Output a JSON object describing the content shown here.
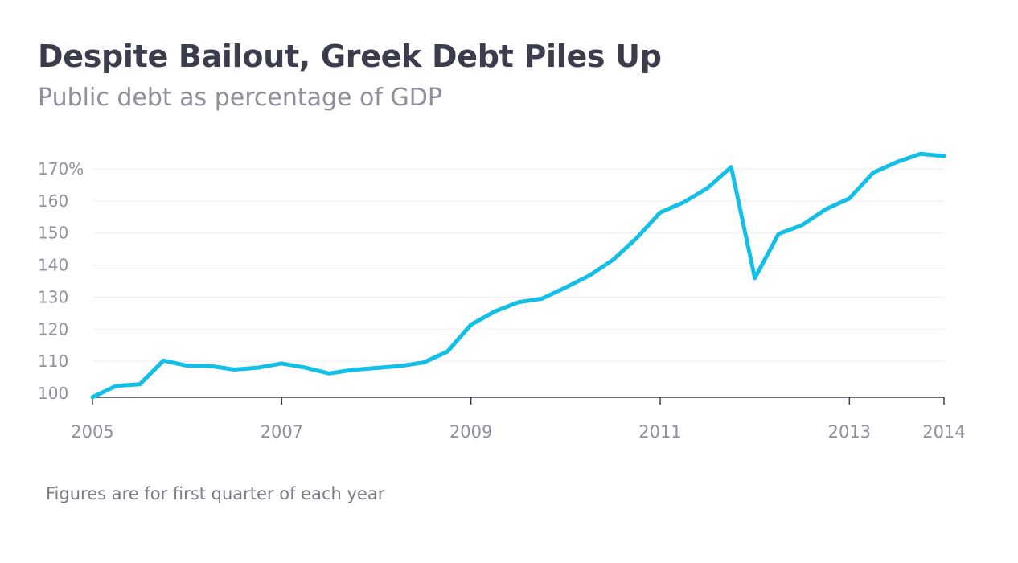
{
  "header": {
    "title": "Despite Bailout, Greek Debt Piles Up",
    "subtitle": "Public debt as percentage of GDP"
  },
  "footer": {
    "note": "Figures are for first quarter of each year"
  },
  "colors": {
    "line": "#12bfe6",
    "grid": "#ededf0",
    "axis": "#3b3d4c",
    "tick_text": "#8e909c"
  },
  "chart_data": {
    "type": "line",
    "title": "Despite Bailout, Greek Debt Piles Up",
    "subtitle": "Public debt as percentage of GDP",
    "xlabel": "",
    "ylabel": "",
    "ylim": [
      100,
      170
    ],
    "xlim": [
      2005,
      2014
    ],
    "grid": true,
    "legend": "none",
    "y_ticks": [
      {
        "value": 100,
        "label": "100"
      },
      {
        "value": 110,
        "label": "110"
      },
      {
        "value": 120,
        "label": "120"
      },
      {
        "value": 130,
        "label": "130"
      },
      {
        "value": 140,
        "label": "140"
      },
      {
        "value": 150,
        "label": "150"
      },
      {
        "value": 160,
        "label": "160"
      },
      {
        "value": 170,
        "label": "170%"
      }
    ],
    "x_ticks": [
      {
        "value": 2005,
        "label": "2005"
      },
      {
        "value": 2007,
        "label": "2007"
      },
      {
        "value": 2009,
        "label": "2009"
      },
      {
        "value": 2011,
        "label": "2011"
      },
      {
        "value": 2013,
        "label": "2013"
      },
      {
        "value": 2014,
        "label": "2014"
      }
    ],
    "series": [
      {
        "x": [
          2005,
          2005.25,
          2005.5,
          2005.75,
          2006,
          2006.25,
          2006.5,
          2006.75,
          2007,
          2007.25,
          2007.5,
          2007.75,
          2008,
          2008.25,
          2008.5,
          2008.75,
          2009,
          2009.25,
          2009.5,
          2009.75,
          2010,
          2010.25,
          2010.5,
          2010.75,
          2011,
          2011.25,
          2011.5,
          2011.75,
          2012,
          2012.25,
          2012.5,
          2012.75,
          2013,
          2013.25,
          2013.5,
          2013.75,
          2014
        ],
        "values": [
          98.8,
          102.3,
          102.8,
          110.2,
          108.6,
          108.5,
          107.4,
          108.0,
          109.3,
          108.0,
          106.2,
          107.3,
          107.9,
          108.5,
          109.6,
          113.0,
          121.4,
          125.5,
          128.4,
          129.5,
          133.0,
          136.7,
          141.6,
          148.4,
          156.4,
          159.6,
          164.0,
          170.6,
          135.9,
          149.7,
          152.5,
          157.4,
          160.8,
          168.8,
          172.1,
          174.7,
          174.0
        ]
      }
    ]
  }
}
